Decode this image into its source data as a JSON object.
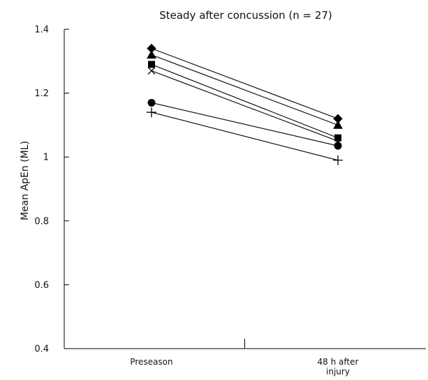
{
  "chart_data": {
    "type": "line",
    "title": "Steady after concussion (n = 27)",
    "ylabel": "Mean ApEn (ML)",
    "xlabel": "",
    "categories": [
      "Preseason",
      "48 h after injury"
    ],
    "category_lines": [
      [
        "Preseason"
      ],
      [
        "48 h after",
        "injury"
      ]
    ],
    "ylim": [
      0.4,
      1.4
    ],
    "yticks": [
      0.4,
      0.6,
      0.8,
      1,
      1.2,
      1.4
    ],
    "ytick_labels": [
      "0.4",
      "0.6",
      "0.8",
      "1",
      "1.2",
      "1.4"
    ],
    "grid": false,
    "series": [
      {
        "marker": "diamond",
        "values": [
          1.34,
          1.12
        ]
      },
      {
        "marker": "triangle",
        "values": [
          1.32,
          1.1
        ]
      },
      {
        "marker": "square",
        "values": [
          1.29,
          1.06
        ]
      },
      {
        "marker": "x",
        "values": [
          1.27,
          1.05
        ]
      },
      {
        "marker": "circle",
        "values": [
          1.17,
          1.035
        ]
      },
      {
        "marker": "plus",
        "values": [
          1.14,
          0.99
        ]
      }
    ]
  }
}
